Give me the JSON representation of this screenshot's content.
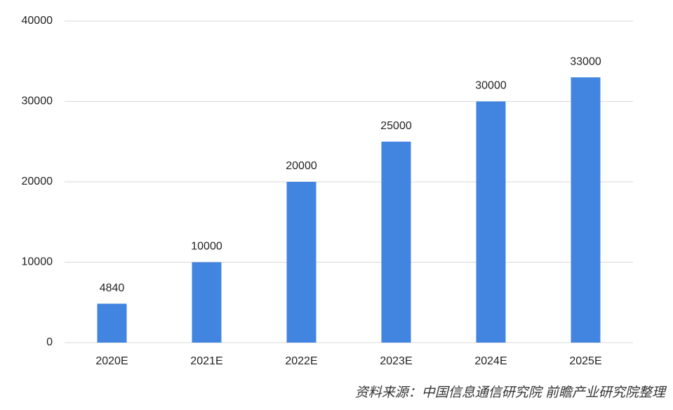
{
  "chart_data": {
    "type": "bar",
    "categories": [
      "2020E",
      "2021E",
      "2022E",
      "2023E",
      "2024E",
      "2025E"
    ],
    "values": [
      4840,
      10000,
      20000,
      25000,
      30000,
      33000
    ],
    "color": "#4285e0",
    "ylim": [
      0,
      40000
    ],
    "yticks": [
      0,
      10000,
      20000,
      30000,
      40000
    ],
    "grid": true,
    "source": "资料来源：中国信息通信研究院 前瞻产业研究院整理"
  }
}
